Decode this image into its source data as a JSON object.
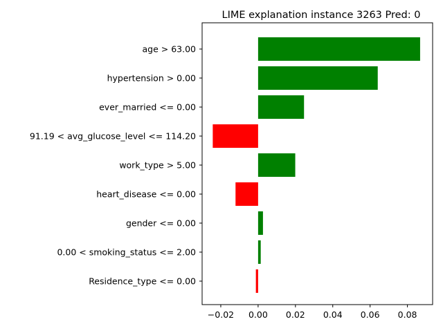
{
  "chart_data": {
    "type": "bar",
    "orientation": "horizontal",
    "title": "LIME explanation instance 3263 Pred: 0",
    "xlabel": "",
    "ylabel": "",
    "xlim": [
      -0.03,
      0.0935
    ],
    "xticks": [
      -0.02,
      0.0,
      0.02,
      0.04,
      0.06,
      0.08
    ],
    "xtick_labels": [
      "−0.02",
      "0.00",
      "0.02",
      "0.04",
      "0.06",
      "0.08"
    ],
    "grid": false,
    "legend": "none",
    "categories": [
      "age > 63.00",
      "hypertension > 0.00",
      "ever_married <= 0.00",
      "91.19 < avg_glucose_level <= 114.20",
      "work_type > 5.00",
      "heart_disease <= 0.00",
      "gender <= 0.00",
      "0.00 < smoking_status <= 2.00",
      "Residence_type <= 0.00"
    ],
    "values": [
      0.0868,
      0.0641,
      0.0246,
      -0.0243,
      0.0199,
      -0.0121,
      0.0026,
      0.0014,
      -0.0012
    ],
    "colors": {
      "positive": "#008000",
      "negative": "#ff0000"
    }
  }
}
